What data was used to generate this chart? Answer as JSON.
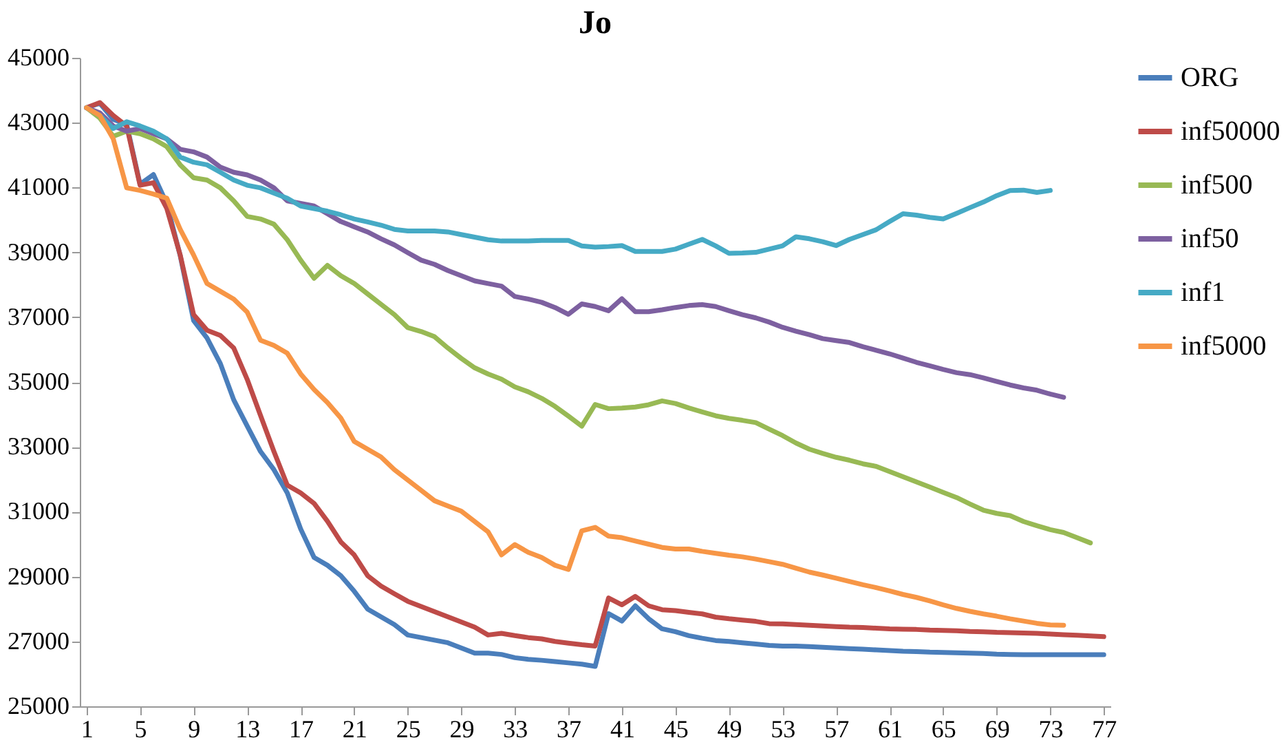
{
  "chart_data": {
    "type": "line",
    "title": "Jo",
    "categories": [
      "1",
      null,
      null,
      null,
      "5",
      null,
      null,
      null,
      "9",
      null,
      null,
      null,
      "13",
      null,
      null,
      null,
      "17",
      null,
      null,
      null,
      "21",
      null,
      null,
      null,
      "25",
      null,
      null,
      null,
      "29",
      null,
      null,
      null,
      "33",
      null,
      null,
      null,
      "37",
      null,
      null,
      null,
      "41",
      null,
      null,
      null,
      "45",
      null,
      null,
      null,
      "49",
      null,
      null,
      null,
      "53",
      null,
      null,
      null,
      "57",
      null,
      null,
      null,
      "61",
      null,
      null,
      null,
      "65",
      null,
      null,
      null,
      "69",
      null,
      null,
      null,
      "73",
      null,
      null,
      null,
      "77"
    ],
    "ylim": [
      25000,
      45000
    ],
    "yticks": [
      25000,
      27000,
      29000,
      31000,
      33000,
      35000,
      37000,
      39000,
      41000,
      43000,
      45000
    ],
    "legend": "top right",
    "line_style": "solid",
    "marker": "none",
    "series": [
      {
        "name": "ORG",
        "color": "#4a7ebb",
        "values": [
          43460,
          43600,
          43100,
          42950,
          41100,
          41400,
          40500,
          38900,
          36900,
          36360,
          35570,
          34450,
          33650,
          32860,
          32300,
          31580,
          30470,
          29590,
          29350,
          29030,
          28550,
          28000,
          27760,
          27520,
          27200,
          27120,
          27040,
          26960,
          26800,
          26640,
          26640,
          26600,
          26500,
          26450,
          26420,
          26380,
          26340,
          26300,
          26230,
          27860,
          27630,
          28100,
          27700,
          27390,
          27300,
          27180,
          27100,
          27030,
          27000,
          26960,
          26920,
          26880,
          26860,
          26860,
          26840,
          26820,
          26800,
          26780,
          26760,
          26740,
          26720,
          26700,
          26690,
          26670,
          26660,
          26650,
          26640,
          26630,
          26610,
          26600,
          26590,
          26590,
          26590,
          26590,
          26590,
          26590,
          26590
        ]
      },
      {
        "name": "inf50000",
        "color": "#be4b48",
        "values": [
          43460,
          43620,
          43220,
          42900,
          41070,
          41150,
          40350,
          38920,
          37080,
          36600,
          36440,
          36050,
          35090,
          33970,
          32860,
          31820,
          31580,
          31260,
          30710,
          30070,
          29670,
          29030,
          28710,
          28470,
          28240,
          28080,
          27920,
          27760,
          27600,
          27440,
          27200,
          27250,
          27180,
          27120,
          27080,
          27000,
          26950,
          26900,
          26860,
          28340,
          28130,
          28390,
          28100,
          27980,
          27950,
          27900,
          27850,
          27750,
          27700,
          27660,
          27620,
          27550,
          27540,
          27520,
          27500,
          27480,
          27460,
          27440,
          27430,
          27410,
          27390,
          27380,
          27370,
          27350,
          27340,
          27330,
          27310,
          27300,
          27280,
          27270,
          27260,
          27250,
          27230,
          27210,
          27190,
          27170,
          27150
        ]
      },
      {
        "name": "inf500",
        "color": "#98b954",
        "values": [
          43460,
          43140,
          42580,
          42740,
          42660,
          42500,
          42260,
          41700,
          41300,
          41230,
          40990,
          40590,
          40110,
          40030,
          39870,
          39390,
          38760,
          38200,
          38600,
          38280,
          38040,
          37720,
          37400,
          37080,
          36680,
          36560,
          36400,
          36050,
          35730,
          35440,
          35250,
          35090,
          34850,
          34700,
          34500,
          34250,
          33950,
          33640,
          34310,
          34180,
          34200,
          34230,
          34300,
          34420,
          34340,
          34200,
          34080,
          33960,
          33880,
          33820,
          33750,
          33550,
          33350,
          33120,
          32930,
          32800,
          32680,
          32590,
          32480,
          32400,
          32240,
          32080,
          31920,
          31760,
          31600,
          31440,
          31240,
          31050,
          30950,
          30880,
          30700,
          30570,
          30450,
          30360,
          30200,
          30040,
          null
        ]
      },
      {
        "name": "inf50",
        "color": "#7d60a0",
        "values": [
          43460,
          43300,
          42900,
          42740,
          42820,
          42660,
          42500,
          42180,
          42100,
          41940,
          41630,
          41470,
          41390,
          41230,
          40990,
          40590,
          40510,
          40430,
          40190,
          39950,
          39790,
          39630,
          39420,
          39230,
          38990,
          38760,
          38630,
          38440,
          38280,
          38120,
          38040,
          37960,
          37640,
          37560,
          37460,
          37300,
          37090,
          37410,
          37330,
          37200,
          37570,
          37170,
          37170,
          37230,
          37300,
          37360,
          37390,
          37330,
          37200,
          37080,
          36980,
          36850,
          36690,
          36570,
          36460,
          36340,
          36280,
          36220,
          36090,
          35980,
          35870,
          35740,
          35610,
          35500,
          35390,
          35290,
          35230,
          35130,
          35020,
          34910,
          34820,
          34750,
          34630,
          34530,
          null,
          null,
          null
        ]
      },
      {
        "name": "inf1",
        "color": "#46aac5",
        "values": [
          43460,
          43220,
          42820,
          43030,
          42900,
          42740,
          42500,
          41940,
          41780,
          41700,
          41470,
          41230,
          41070,
          40990,
          40830,
          40670,
          40430,
          40350,
          40270,
          40160,
          40030,
          39940,
          39840,
          39710,
          39660,
          39660,
          39660,
          39630,
          39550,
          39470,
          39390,
          39350,
          39350,
          39350,
          39370,
          39370,
          39370,
          39200,
          39160,
          39180,
          39210,
          39030,
          39030,
          39030,
          39100,
          39250,
          39400,
          39200,
          38970,
          38980,
          39000,
          39100,
          39200,
          39480,
          39420,
          39330,
          39210,
          39400,
          39550,
          39700,
          39950,
          40190,
          40150,
          40080,
          40030,
          40200,
          40380,
          40550,
          40750,
          40910,
          40920,
          40850,
          40910,
          null,
          null,
          null,
          null
        ]
      },
      {
        "name": "inf5000",
        "color": "#f79646",
        "values": [
          43460,
          43220,
          42500,
          40990,
          40910,
          40800,
          40670,
          39710,
          38920,
          38040,
          37800,
          37560,
          37160,
          36290,
          36130,
          35890,
          35250,
          34770,
          34370,
          33890,
          33170,
          32930,
          32690,
          32300,
          31980,
          31660,
          31340,
          31180,
          31020,
          30700,
          30380,
          29670,
          29990,
          29750,
          29590,
          29350,
          29220,
          30410,
          30520,
          30250,
          30200,
          30100,
          30000,
          29900,
          29850,
          29850,
          29780,
          29720,
          29660,
          29610,
          29540,
          29460,
          29380,
          29260,
          29140,
          29050,
          28950,
          28850,
          28750,
          28660,
          28560,
          28450,
          28360,
          28250,
          28130,
          28020,
          27930,
          27850,
          27780,
          27700,
          27630,
          27560,
          27510,
          27500,
          null,
          null,
          null
        ]
      }
    ]
  }
}
